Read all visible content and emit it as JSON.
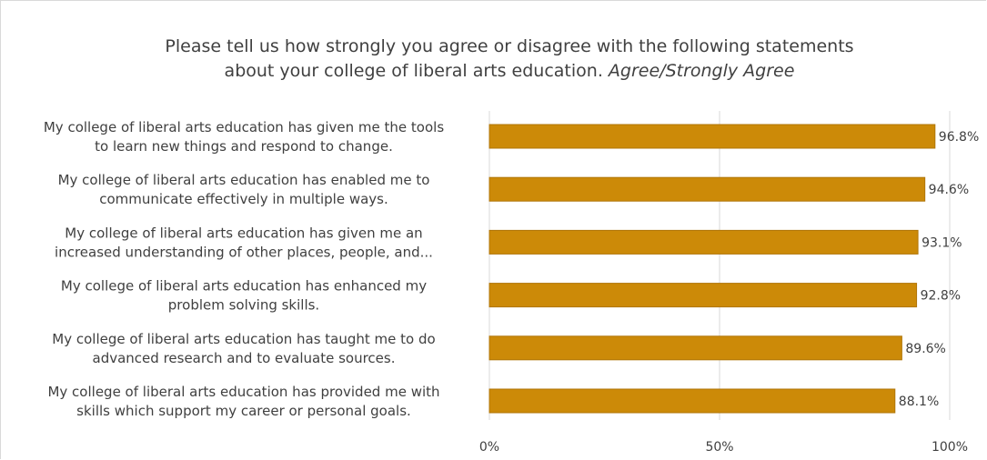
{
  "chart_data": {
    "type": "bar",
    "orientation": "horizontal",
    "title_line1": "Please  tell us how strongly you agree or disagree with the following statements",
    "title_line2": "about your college of liberal arts education.",
    "title_line2_italic": "Agree/Strongly Agree",
    "categories": [
      [
        "My college of liberal arts education has given me the tools",
        "to learn new things and respond to change."
      ],
      [
        "My college of liberal arts education has enabled me to",
        "communicate effectively in multiple ways."
      ],
      [
        "My college of liberal arts education has given me an",
        "increased understanding of other places, people, and..."
      ],
      [
        "My college of liberal arts education has enhanced my",
        "problem solving skills."
      ],
      [
        "My college of liberal arts education has taught me to do",
        "advanced research and to evaluate sources."
      ],
      [
        "My college of liberal arts education has provided me with",
        "skills which support my career or personal goals."
      ]
    ],
    "values": [
      96.8,
      94.6,
      93.1,
      92.8,
      89.6,
      88.1
    ],
    "value_labels": [
      "96.8%",
      "94.6%",
      "93.1%",
      "92.8%",
      "89.6%",
      "88.1%"
    ],
    "x_ticks": [
      0,
      50,
      100
    ],
    "x_tick_labels": [
      "0%",
      "50%",
      "100%"
    ],
    "xlim": [
      0,
      100
    ],
    "grid": true,
    "bar_color": "#CC8A08",
    "bar_edge_color": "#B07508",
    "grid_color": "#d9d9d9"
  }
}
